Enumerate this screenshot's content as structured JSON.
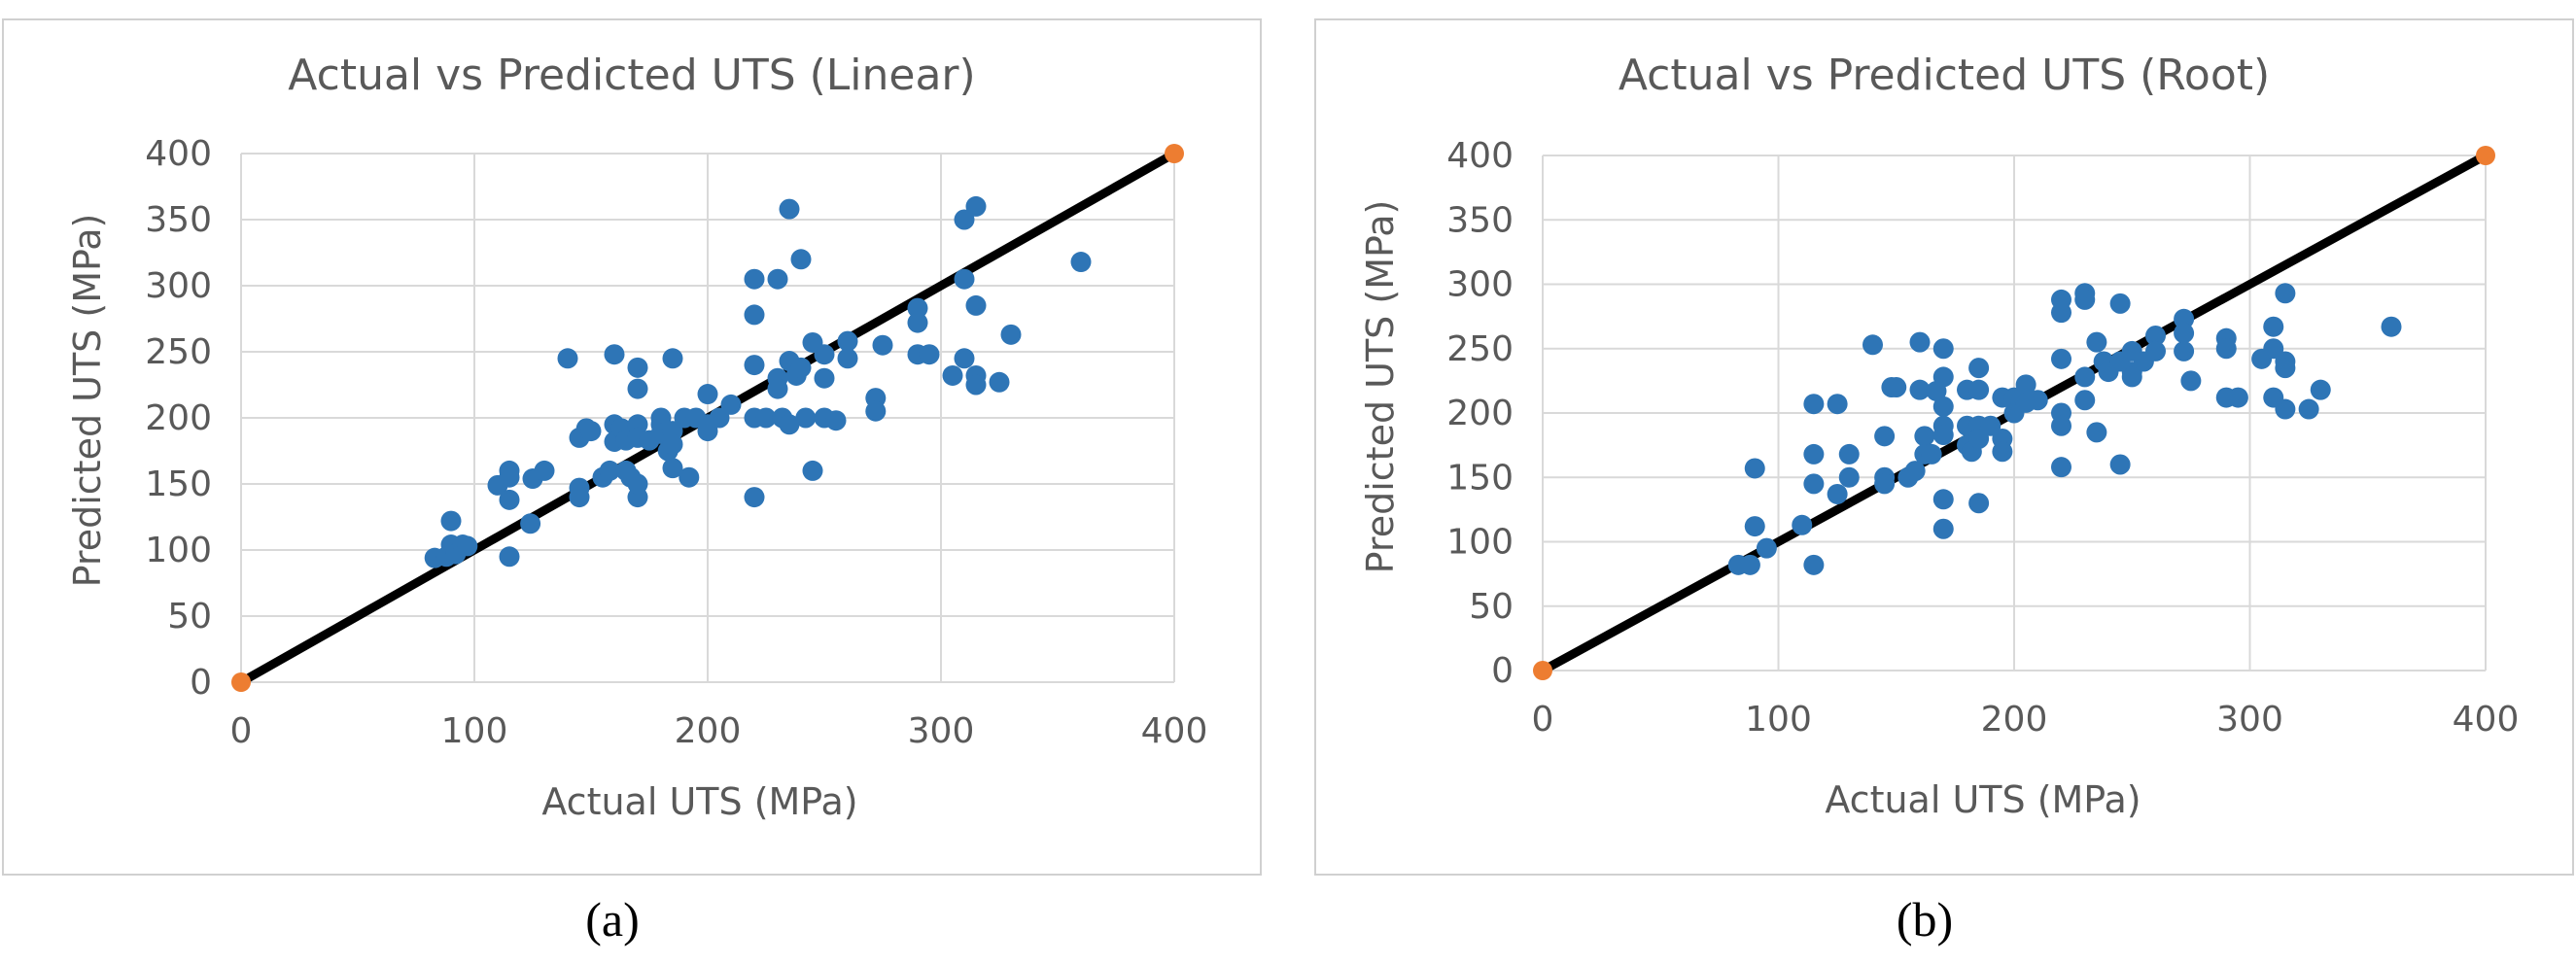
{
  "chart_data": [
    {
      "type": "scatter",
      "panel_label": "(a)",
      "title": "Actual vs Predicted UTS (Linear)",
      "xlabel": "Actual UTS (MPa)",
      "ylabel": "Predicted UTS (MPa)",
      "xlim": [
        0,
        400
      ],
      "ylim": [
        0,
        400
      ],
      "xticks": [
        0,
        100,
        200,
        300,
        400
      ],
      "yticks": [
        0,
        50,
        100,
        150,
        200,
        250,
        300,
        350,
        400
      ],
      "grid": true,
      "series": [
        {
          "name": "data",
          "color": "#2e75b6",
          "points": [
            [
              83,
              94
            ],
            [
              88,
              95
            ],
            [
              90,
              122
            ],
            [
              90,
              104
            ],
            [
              92,
              97
            ],
            [
              95,
              104
            ],
            [
              97,
              103
            ],
            [
              110,
              149
            ],
            [
              115,
              160
            ],
            [
              115,
              155
            ],
            [
              115,
              138
            ],
            [
              115,
              95
            ],
            [
              124,
              120
            ],
            [
              125,
              154
            ],
            [
              130,
              160
            ],
            [
              140,
              245
            ],
            [
              145,
              185
            ],
            [
              145,
              147
            ],
            [
              145,
              140
            ],
            [
              148,
              192
            ],
            [
              150,
              190
            ],
            [
              155,
              155
            ],
            [
              158,
              160
            ],
            [
              160,
              182
            ],
            [
              160,
              248
            ],
            [
              160,
              195
            ],
            [
              163,
              192
            ],
            [
              165,
              183
            ],
            [
              165,
              160
            ],
            [
              167,
              155
            ],
            [
              170,
              140
            ],
            [
              170,
              150
            ],
            [
              170,
              195
            ],
            [
              170,
              222
            ],
            [
              170,
              238
            ],
            [
              170,
              185
            ],
            [
              175,
              183
            ],
            [
              180,
              200
            ],
            [
              180,
              195
            ],
            [
              180,
              188
            ],
            [
              183,
              175
            ],
            [
              185,
              245
            ],
            [
              185,
              190
            ],
            [
              185,
              180
            ],
            [
              185,
              162
            ],
            [
              190,
              200
            ],
            [
              192,
              155
            ],
            [
              195,
              200
            ],
            [
              200,
              218
            ],
            [
              200,
              195
            ],
            [
              200,
              190
            ],
            [
              205,
              200
            ],
            [
              210,
              210
            ],
            [
              220,
              305
            ],
            [
              220,
              278
            ],
            [
              220,
              240
            ],
            [
              220,
              200
            ],
            [
              220,
              140
            ],
            [
              225,
              200
            ],
            [
              230,
              305
            ],
            [
              230,
              230
            ],
            [
              230,
              222
            ],
            [
              232,
              200
            ],
            [
              235,
              358
            ],
            [
              235,
              243
            ],
            [
              235,
              195
            ],
            [
              238,
              232
            ],
            [
              240,
              320
            ],
            [
              240,
              238
            ],
            [
              242,
              200
            ],
            [
              245,
              257
            ],
            [
              245,
              160
            ],
            [
              250,
              248
            ],
            [
              250,
              230
            ],
            [
              250,
              200
            ],
            [
              255,
              198
            ],
            [
              260,
              258
            ],
            [
              260,
              245
            ],
            [
              272,
              215
            ],
            [
              272,
              205
            ],
            [
              275,
              255
            ],
            [
              290,
              283
            ],
            [
              290,
              272
            ],
            [
              290,
              248
            ],
            [
              295,
              248
            ],
            [
              305,
              232
            ],
            [
              310,
              350
            ],
            [
              310,
              305
            ],
            [
              310,
              245
            ],
            [
              315,
              360
            ],
            [
              315,
              285
            ],
            [
              315,
              232
            ],
            [
              315,
              225
            ],
            [
              325,
              227
            ],
            [
              330,
              263
            ],
            [
              360,
              318
            ]
          ]
        }
      ],
      "fit_line": {
        "label": "y = x",
        "color": "#000000",
        "x": [
          0,
          400
        ],
        "y": [
          0,
          400
        ],
        "endpoint_color": "#ed7d31"
      }
    },
    {
      "type": "scatter",
      "panel_label": "(b)",
      "title": "Actual vs Predicted UTS (Root)",
      "xlabel": "Actual UTS (MPa)",
      "ylabel": "Predicted UTS (MPa)",
      "xlim": [
        0,
        400
      ],
      "ylim": [
        0,
        400
      ],
      "xticks": [
        0,
        100,
        200,
        300,
        400
      ],
      "yticks": [
        0,
        50,
        100,
        150,
        200,
        250,
        300,
        350,
        400
      ],
      "grid": true,
      "series": [
        {
          "name": "data",
          "color": "#2e75b6",
          "points": [
            [
              83,
              82
            ],
            [
              88,
              82
            ],
            [
              90,
              157
            ],
            [
              90,
              112
            ],
            [
              95,
              95
            ],
            [
              110,
              113
            ],
            [
              115,
              207
            ],
            [
              115,
              168
            ],
            [
              115,
              145
            ],
            [
              115,
              82
            ],
            [
              125,
              207
            ],
            [
              125,
              137
            ],
            [
              130,
              168
            ],
            [
              130,
              150
            ],
            [
              140,
              253
            ],
            [
              145,
              182
            ],
            [
              145,
              150
            ],
            [
              145,
              145
            ],
            [
              148,
              220
            ],
            [
              150,
              220
            ],
            [
              155,
              150
            ],
            [
              158,
              155
            ],
            [
              160,
              255
            ],
            [
              160,
              218
            ],
            [
              162,
              182
            ],
            [
              162,
              168
            ],
            [
              165,
              168
            ],
            [
              167,
              217
            ],
            [
              170,
              250
            ],
            [
              170,
              228
            ],
            [
              170,
              205
            ],
            [
              170,
              190
            ],
            [
              170,
              183
            ],
            [
              170,
              133
            ],
            [
              170,
              110
            ],
            [
              180,
              218
            ],
            [
              180,
              190
            ],
            [
              180,
              175
            ],
            [
              182,
              170
            ],
            [
              185,
              235
            ],
            [
              185,
              218
            ],
            [
              185,
              190
            ],
            [
              185,
              180
            ],
            [
              185,
              130
            ],
            [
              190,
              190
            ],
            [
              195,
              212
            ],
            [
              195,
              180
            ],
            [
              195,
              170
            ],
            [
              200,
              212
            ],
            [
              200,
              200
            ],
            [
              205,
              222
            ],
            [
              205,
              208
            ],
            [
              210,
              210
            ],
            [
              220,
              288
            ],
            [
              220,
              278
            ],
            [
              220,
              242
            ],
            [
              220,
              200
            ],
            [
              220,
              190
            ],
            [
              220,
              158
            ],
            [
              230,
              293
            ],
            [
              230,
              288
            ],
            [
              230,
              228
            ],
            [
              230,
              210
            ],
            [
              235,
              255
            ],
            [
              235,
              185
            ],
            [
              238,
              240
            ],
            [
              240,
              232
            ],
            [
              245,
              285
            ],
            [
              245,
              240
            ],
            [
              245,
              160
            ],
            [
              250,
              248
            ],
            [
              250,
              232
            ],
            [
              250,
              228
            ],
            [
              255,
              240
            ],
            [
              260,
              260
            ],
            [
              260,
              248
            ],
            [
              272,
              273
            ],
            [
              272,
              262
            ],
            [
              272,
              248
            ],
            [
              275,
              225
            ],
            [
              290,
              258
            ],
            [
              290,
              250
            ],
            [
              290,
              212
            ],
            [
              295,
              212
            ],
            [
              305,
              242
            ],
            [
              310,
              267
            ],
            [
              310,
              250
            ],
            [
              310,
              212
            ],
            [
              315,
              293
            ],
            [
              315,
              240
            ],
            [
              315,
              235
            ],
            [
              315,
              203
            ],
            [
              325,
              203
            ],
            [
              330,
              218
            ],
            [
              360,
              267
            ]
          ]
        }
      ],
      "fit_line": {
        "label": "y = x",
        "color": "#000000",
        "x": [
          0,
          400
        ],
        "y": [
          0,
          400
        ],
        "endpoint_color": "#ed7d31"
      }
    }
  ]
}
